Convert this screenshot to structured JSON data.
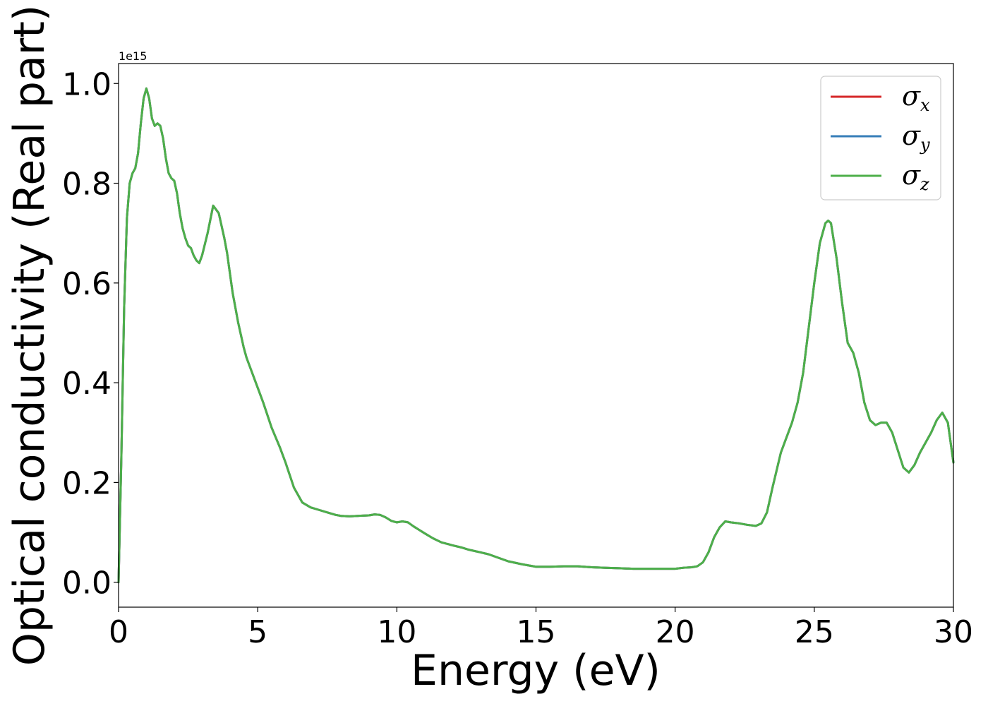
{
  "chart_data": {
    "type": "line",
    "xlabel": "Energy (eV)",
    "ylabel": "Optical conductivity (Real part)",
    "y_offset_text": "1e15",
    "xlim": [
      0,
      30
    ],
    "ylim": [
      -0.05,
      1.04
    ],
    "xticks": [
      0,
      5,
      10,
      15,
      20,
      25,
      30
    ],
    "xtick_labels": [
      "0",
      "5",
      "10",
      "15",
      "20",
      "25",
      "30"
    ],
    "yticks": [
      0.0,
      0.2,
      0.4,
      0.6,
      0.8,
      1.0
    ],
    "ytick_labels": [
      "0.0",
      "0.2",
      "0.4",
      "0.6",
      "0.8",
      "1.0"
    ],
    "legend_position": "top-right",
    "grid": false,
    "series": [
      {
        "name": "σ",
        "subscript": "x",
        "color": "#d62728",
        "x": [
          0,
          0.1,
          0.2,
          0.3,
          0.4,
          0.5,
          0.6,
          0.7,
          0.8,
          0.9,
          1.0,
          1.1,
          1.2,
          1.3,
          1.4,
          1.5,
          1.6,
          1.7,
          1.8,
          1.9,
          2.0,
          2.1,
          2.2,
          2.3,
          2.4,
          2.5,
          2.6,
          2.7,
          2.8,
          2.9,
          3.0,
          3.2,
          3.4,
          3.6,
          3.8,
          3.9,
          4.0,
          4.1,
          4.2,
          4.3,
          4.4,
          4.5,
          4.6,
          4.8,
          5.0,
          5.2,
          5.5,
          5.8,
          6.0,
          6.3,
          6.6,
          6.9,
          7.2,
          7.5,
          7.8,
          8.0,
          8.3,
          8.6,
          9.0,
          9.2,
          9.4,
          9.6,
          9.8,
          10.0,
          10.2,
          10.4,
          10.6,
          10.8,
          11.0,
          11.3,
          11.6,
          12.0,
          12.3,
          12.6,
          13.0,
          13.3,
          13.6,
          14.0,
          14.5,
          15.0,
          15.5,
          16.0,
          16.5,
          17.0,
          17.5,
          18.0,
          18.5,
          19.0,
          19.5,
          20.0,
          20.3,
          20.6,
          20.8,
          21.0,
          21.2,
          21.4,
          21.6,
          21.8,
          22.0,
          22.3,
          22.6,
          22.9,
          23.1,
          23.3,
          23.5,
          23.8,
          24.0,
          24.2,
          24.4,
          24.6,
          24.8,
          25.0,
          25.2,
          25.4,
          25.5,
          25.6,
          25.8,
          26.0,
          26.2,
          26.4,
          26.6,
          26.8,
          27.0,
          27.2,
          27.4,
          27.6,
          27.8,
          28.0,
          28.2,
          28.4,
          28.6,
          28.8,
          29.0,
          29.2,
          29.4,
          29.6,
          29.8,
          30.0
        ],
        "y": [
          0.0,
          0.25,
          0.55,
          0.73,
          0.8,
          0.82,
          0.83,
          0.86,
          0.92,
          0.97,
          0.99,
          0.97,
          0.93,
          0.915,
          0.92,
          0.915,
          0.89,
          0.85,
          0.82,
          0.81,
          0.805,
          0.78,
          0.74,
          0.71,
          0.69,
          0.675,
          0.67,
          0.655,
          0.645,
          0.64,
          0.655,
          0.7,
          0.755,
          0.74,
          0.69,
          0.66,
          0.62,
          0.58,
          0.55,
          0.52,
          0.495,
          0.47,
          0.45,
          0.42,
          0.39,
          0.36,
          0.31,
          0.27,
          0.24,
          0.19,
          0.16,
          0.15,
          0.145,
          0.14,
          0.135,
          0.133,
          0.132,
          0.133,
          0.134,
          0.136,
          0.135,
          0.13,
          0.123,
          0.12,
          0.122,
          0.12,
          0.112,
          0.105,
          0.098,
          0.088,
          0.08,
          0.074,
          0.07,
          0.065,
          0.06,
          0.056,
          0.05,
          0.042,
          0.036,
          0.031,
          0.031,
          0.032,
          0.032,
          0.03,
          0.029,
          0.028,
          0.027,
          0.027,
          0.027,
          0.027,
          0.029,
          0.03,
          0.032,
          0.04,
          0.06,
          0.09,
          0.11,
          0.122,
          0.12,
          0.118,
          0.115,
          0.113,
          0.118,
          0.14,
          0.19,
          0.26,
          0.29,
          0.32,
          0.36,
          0.42,
          0.51,
          0.6,
          0.68,
          0.72,
          0.725,
          0.72,
          0.65,
          0.56,
          0.48,
          0.46,
          0.42,
          0.36,
          0.325,
          0.315,
          0.32,
          0.32,
          0.3,
          0.265,
          0.23,
          0.22,
          0.235,
          0.26,
          0.28,
          0.3,
          0.325,
          0.34,
          0.32,
          0.24
        ]
      },
      {
        "name": "σ",
        "subscript": "y",
        "color": "#377eb8",
        "x": [
          0,
          0.1,
          0.2,
          0.3,
          0.4,
          0.5,
          0.6,
          0.7,
          0.8,
          0.9,
          1.0,
          1.1,
          1.2,
          1.3,
          1.4,
          1.5,
          1.6,
          1.7,
          1.8,
          1.9,
          2.0,
          2.1,
          2.2,
          2.3,
          2.4,
          2.5,
          2.6,
          2.7,
          2.8,
          2.9,
          3.0,
          3.2,
          3.4,
          3.6,
          3.8,
          3.9,
          4.0,
          4.1,
          4.2,
          4.3,
          4.4,
          4.5,
          4.6,
          4.8,
          5.0,
          5.2,
          5.5,
          5.8,
          6.0,
          6.3,
          6.6,
          6.9,
          7.2,
          7.5,
          7.8,
          8.0,
          8.3,
          8.6,
          9.0,
          9.2,
          9.4,
          9.6,
          9.8,
          10.0,
          10.2,
          10.4,
          10.6,
          10.8,
          11.0,
          11.3,
          11.6,
          12.0,
          12.3,
          12.6,
          13.0,
          13.3,
          13.6,
          14.0,
          14.5,
          15.0,
          15.5,
          16.0,
          16.5,
          17.0,
          17.5,
          18.0,
          18.5,
          19.0,
          19.5,
          20.0,
          20.3,
          20.6,
          20.8,
          21.0,
          21.2,
          21.4,
          21.6,
          21.8,
          22.0,
          22.3,
          22.6,
          22.9,
          23.1,
          23.3,
          23.5,
          23.8,
          24.0,
          24.2,
          24.4,
          24.6,
          24.8,
          25.0,
          25.2,
          25.4,
          25.5,
          25.6,
          25.8,
          26.0,
          26.2,
          26.4,
          26.6,
          26.8,
          27.0,
          27.2,
          27.4,
          27.6,
          27.8,
          28.0,
          28.2,
          28.4,
          28.6,
          28.8,
          29.0,
          29.2,
          29.4,
          29.6,
          29.8,
          30.0
        ],
        "y": [
          0.0,
          0.25,
          0.55,
          0.73,
          0.8,
          0.82,
          0.83,
          0.86,
          0.92,
          0.97,
          0.99,
          0.97,
          0.93,
          0.915,
          0.92,
          0.915,
          0.89,
          0.85,
          0.82,
          0.81,
          0.805,
          0.78,
          0.74,
          0.71,
          0.69,
          0.675,
          0.67,
          0.655,
          0.645,
          0.64,
          0.655,
          0.7,
          0.755,
          0.74,
          0.69,
          0.66,
          0.62,
          0.58,
          0.55,
          0.52,
          0.495,
          0.47,
          0.45,
          0.42,
          0.39,
          0.36,
          0.31,
          0.27,
          0.24,
          0.19,
          0.16,
          0.15,
          0.145,
          0.14,
          0.135,
          0.133,
          0.132,
          0.133,
          0.134,
          0.136,
          0.135,
          0.13,
          0.123,
          0.12,
          0.122,
          0.12,
          0.112,
          0.105,
          0.098,
          0.088,
          0.08,
          0.074,
          0.07,
          0.065,
          0.06,
          0.056,
          0.05,
          0.042,
          0.036,
          0.031,
          0.031,
          0.032,
          0.032,
          0.03,
          0.029,
          0.028,
          0.027,
          0.027,
          0.027,
          0.027,
          0.029,
          0.03,
          0.032,
          0.04,
          0.06,
          0.09,
          0.11,
          0.122,
          0.12,
          0.118,
          0.115,
          0.113,
          0.118,
          0.14,
          0.19,
          0.26,
          0.29,
          0.32,
          0.36,
          0.42,
          0.51,
          0.6,
          0.68,
          0.72,
          0.725,
          0.72,
          0.65,
          0.56,
          0.48,
          0.46,
          0.42,
          0.36,
          0.325,
          0.315,
          0.32,
          0.32,
          0.3,
          0.265,
          0.23,
          0.22,
          0.235,
          0.26,
          0.28,
          0.3,
          0.325,
          0.34,
          0.32,
          0.24
        ]
      },
      {
        "name": "σ",
        "subscript": "z",
        "color": "#4daf4a",
        "x": [
          0,
          0.1,
          0.2,
          0.3,
          0.4,
          0.5,
          0.6,
          0.7,
          0.8,
          0.9,
          1.0,
          1.1,
          1.2,
          1.3,
          1.4,
          1.5,
          1.6,
          1.7,
          1.8,
          1.9,
          2.0,
          2.1,
          2.2,
          2.3,
          2.4,
          2.5,
          2.6,
          2.7,
          2.8,
          2.9,
          3.0,
          3.2,
          3.4,
          3.6,
          3.8,
          3.9,
          4.0,
          4.1,
          4.2,
          4.3,
          4.4,
          4.5,
          4.6,
          4.8,
          5.0,
          5.2,
          5.5,
          5.8,
          6.0,
          6.3,
          6.6,
          6.9,
          7.2,
          7.5,
          7.8,
          8.0,
          8.3,
          8.6,
          9.0,
          9.2,
          9.4,
          9.6,
          9.8,
          10.0,
          10.2,
          10.4,
          10.6,
          10.8,
          11.0,
          11.3,
          11.6,
          12.0,
          12.3,
          12.6,
          13.0,
          13.3,
          13.6,
          14.0,
          14.5,
          15.0,
          15.5,
          16.0,
          16.5,
          17.0,
          17.5,
          18.0,
          18.5,
          19.0,
          19.5,
          20.0,
          20.3,
          20.6,
          20.8,
          21.0,
          21.2,
          21.4,
          21.6,
          21.8,
          22.0,
          22.3,
          22.6,
          22.9,
          23.1,
          23.3,
          23.5,
          23.8,
          24.0,
          24.2,
          24.4,
          24.6,
          24.8,
          25.0,
          25.2,
          25.4,
          25.5,
          25.6,
          25.8,
          26.0,
          26.2,
          26.4,
          26.6,
          26.8,
          27.0,
          27.2,
          27.4,
          27.6,
          27.8,
          28.0,
          28.2,
          28.4,
          28.6,
          28.8,
          29.0,
          29.2,
          29.4,
          29.6,
          29.8,
          30.0
        ],
        "y": [
          0.0,
          0.25,
          0.55,
          0.73,
          0.8,
          0.82,
          0.83,
          0.86,
          0.92,
          0.97,
          0.99,
          0.97,
          0.93,
          0.915,
          0.92,
          0.915,
          0.89,
          0.85,
          0.82,
          0.81,
          0.805,
          0.78,
          0.74,
          0.71,
          0.69,
          0.675,
          0.67,
          0.655,
          0.645,
          0.64,
          0.655,
          0.7,
          0.755,
          0.74,
          0.69,
          0.66,
          0.62,
          0.58,
          0.55,
          0.52,
          0.495,
          0.47,
          0.45,
          0.42,
          0.39,
          0.36,
          0.31,
          0.27,
          0.24,
          0.19,
          0.16,
          0.15,
          0.145,
          0.14,
          0.135,
          0.133,
          0.132,
          0.133,
          0.134,
          0.136,
          0.135,
          0.13,
          0.123,
          0.12,
          0.122,
          0.12,
          0.112,
          0.105,
          0.098,
          0.088,
          0.08,
          0.074,
          0.07,
          0.065,
          0.06,
          0.056,
          0.05,
          0.042,
          0.036,
          0.031,
          0.031,
          0.032,
          0.032,
          0.03,
          0.029,
          0.028,
          0.027,
          0.027,
          0.027,
          0.027,
          0.029,
          0.03,
          0.032,
          0.04,
          0.06,
          0.09,
          0.11,
          0.122,
          0.12,
          0.118,
          0.115,
          0.113,
          0.118,
          0.14,
          0.19,
          0.26,
          0.29,
          0.32,
          0.36,
          0.42,
          0.51,
          0.6,
          0.68,
          0.72,
          0.725,
          0.72,
          0.65,
          0.56,
          0.48,
          0.46,
          0.42,
          0.36,
          0.325,
          0.315,
          0.32,
          0.32,
          0.3,
          0.265,
          0.23,
          0.22,
          0.235,
          0.26,
          0.28,
          0.3,
          0.325,
          0.34,
          0.32,
          0.24
        ]
      }
    ]
  }
}
